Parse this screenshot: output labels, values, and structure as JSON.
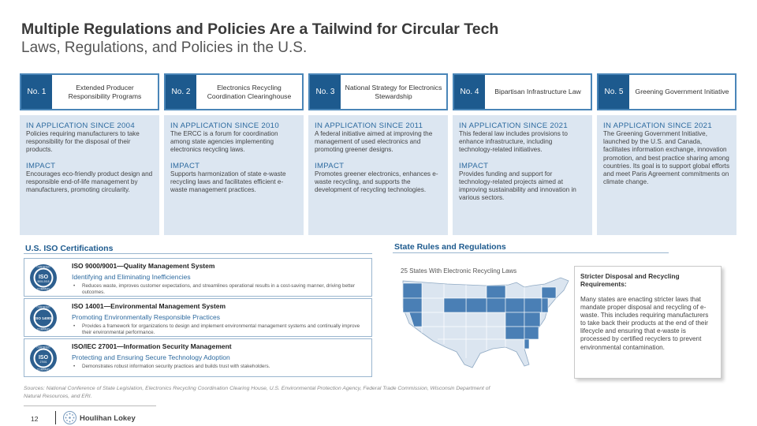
{
  "header": {
    "title": "Multiple Regulations and Policies Are a Tailwind for Circular Tech",
    "subtitle": "Laws, Regulations, and Policies in the U.S."
  },
  "cards": [
    {
      "number": "No. 1",
      "name": "Extended Producer Responsibility Programs",
      "since": "IN APPLICATION SINCE 2004",
      "desc": "Policies requiring manufacturers to take responsibility for the disposal of their products.",
      "impact_label": "IMPACT",
      "impact": "Encourages eco-friendly product design and responsible end-of-life management by manufacturers, promoting circularity."
    },
    {
      "number": "No. 2",
      "name": "Electronics Recycling Coordination Clearinghouse",
      "since": "IN APPLICATION SINCE 2010",
      "desc": "The ERCC is a forum for coordination among state agencies implementing electronics recycling laws.",
      "impact_label": "IMPACT",
      "impact": "Supports harmonization of state e-waste recycling laws and facilitates efficient e-waste management practices."
    },
    {
      "number": "No. 3",
      "name": "National Strategy for Electronics Stewardship",
      "since": "IN APPLICATION SINCE 2011",
      "desc": "A federal initiative aimed at improving the management of used electronics and promoting greener designs.",
      "impact_label": "IMPACT",
      "impact": "Promotes greener electronics, enhances e-waste recycling, and supports the development of recycling technologies."
    },
    {
      "number": "No. 4",
      "name": "Bipartisan Infrastructure Law",
      "since": "IN APPLICATION SINCE 2021",
      "desc": "This federal law includes provisions to enhance infrastructure, including technology-related initiatives.",
      "impact_label": "IMPACT",
      "impact": "Provides funding and support for technology-related projects aimed at improving sustainability and innovation in various sectors."
    },
    {
      "number": "No. 5",
      "name": "Greening Government Initiative",
      "since": "IN APPLICATION SINCE 2021",
      "desc": "The Greening Government Initiative, launched by the U.S. and Canada, facilitates information exchange, innovation promotion, and best practice sharing among countries. Its goal is to support global efforts and meet Paris Agreement commitments on climate change.",
      "impact_label": "",
      "impact": ""
    }
  ],
  "iso": {
    "heading": "U.S. ISO Certifications",
    "items": [
      {
        "title": "ISO 9000/9001—Quality Management System",
        "subtitle": "Identifying and Eliminating Inefficiencies",
        "bullet": "Reduces waste, improves customer expectations, and streamlines operational results in a cost-saving manner, driving better outcomes.",
        "badge_top": "CERTIFIED",
        "badge_iso": "ISO",
        "badge_num": "9001:2015",
        "badge_bottom": "COMPANY"
      },
      {
        "title": "ISO 14001—Environmental Management System",
        "subtitle": "Promoting Environmentally Responsible Practices",
        "bullet": "Provides a framework for organizations to design and implement environmental management systems and continually improve their environmental performance.",
        "badge_top": "CERTIFIED",
        "badge_iso": "ISO 14001",
        "badge_num": "",
        "badge_bottom": "COMPANY"
      },
      {
        "title": "ISO/IEC 27001—Information Security Management",
        "subtitle": "Protecting and Ensuring Secure Technology Adoption",
        "bullet": "Demonstrates robust information security practices and builds trust with stakeholders.",
        "badge_top": "CERTIFIED",
        "badge_iso": "ISO",
        "badge_num": "27001",
        "badge_bottom": "COMPANY"
      }
    ]
  },
  "state": {
    "heading": "State Rules and Regulations",
    "map_label": "25 States With Electronic Recycling Laws",
    "callout_title": "Stricter Disposal and Recycling Requirements:",
    "callout_text": "Many states are enacting stricter laws that mandate proper disposal and recycling of e-waste. This includes requiring manufacturers to take back their products at the end of their lifecycle and ensuring that e-waste is processed by certified recyclers to prevent environmental contamination."
  },
  "footer": {
    "sources": "Sources: National Conference of State Legislation, Electronics Recycling Coordination Clearing House, U.S. Environmental Protection Agency, Federal Trade Commission, Wisconsin Department of Natural Resources, and ERI.",
    "page_number": "12",
    "brand": "Houlihan Lokey"
  },
  "colors": {
    "navy": "#1d5a8e",
    "accent_blue": "#2d6a9f",
    "card_fill": "#dce6f1",
    "map_highlight": "#4a7fb5",
    "map_light": "#dbe5f0"
  }
}
